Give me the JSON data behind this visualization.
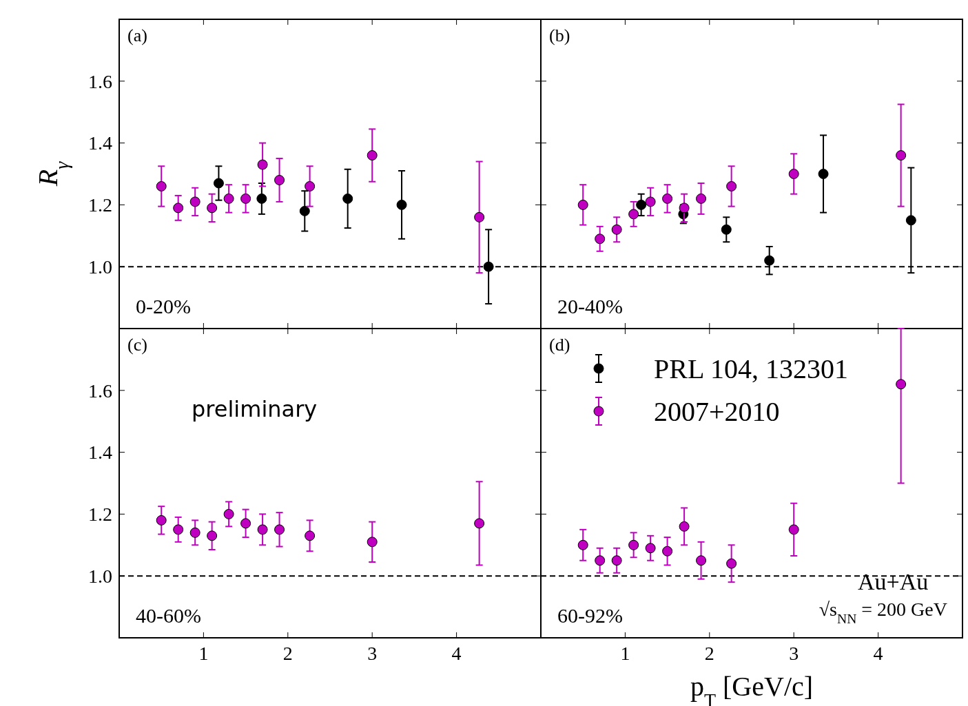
{
  "chart_data": [
    {
      "type": "scatter",
      "title": "(a)",
      "ylabel": "R$_{γ}$",
      "xlim": [
        0,
        5
      ],
      "ylim": [
        0.8,
        1.8
      ],
      "xticks": [
        1,
        2,
        3,
        4
      ],
      "yticks": [
        {
          "value": 1,
          "label": "1.0"
        },
        {
          "value": 1.2,
          "label": "1.2"
        },
        {
          "value": 1.4,
          "label": "1.4"
        },
        {
          "value": 1.6,
          "label": "1.6"
        }
      ],
      "tick_labels": "y",
      "marker": "circle",
      "annotations": [
        "0-20%"
      ],
      "ref_lines": [
        {
          "axis": "y",
          "value": 1,
          "line_style": "dashed",
          "color": "#000000"
        }
      ],
      "series": [
        {
          "color": "#000000",
          "x": [
            1.18,
            1.69,
            2.2,
            2.71,
            3.35,
            4.38
          ],
          "values": [
            1.27,
            1.22,
            1.18,
            1.22,
            1.2,
            1.0
          ],
          "errors": [
            0.055,
            0.05,
            0.065,
            0.095,
            0.11,
            0.12
          ]
        },
        {
          "color": "#c000c0",
          "x": [
            0.5,
            0.7,
            0.9,
            1.1,
            1.3,
            1.5,
            1.7,
            1.9,
            2.26,
            3.0,
            4.27
          ],
          "values": [
            1.26,
            1.19,
            1.21,
            1.19,
            1.22,
            1.22,
            1.33,
            1.28,
            1.26,
            1.36,
            1.16
          ],
          "errors": [
            0.065,
            0.04,
            0.045,
            0.045,
            0.045,
            0.045,
            0.07,
            0.07,
            0.065,
            0.085,
            0.18
          ]
        }
      ]
    },
    {
      "type": "scatter",
      "title": "(b)",
      "xlim": [
        0,
        5
      ],
      "ylim": [
        0.8,
        1.8
      ],
      "xticks": [
        1,
        2,
        3,
        4
      ],
      "yticks": [
        1,
        1.2,
        1.4,
        1.6
      ],
      "tick_labels": false,
      "marker": "circle",
      "annotations": [
        "20-40%"
      ],
      "ref_lines": [
        {
          "axis": "y",
          "value": 1,
          "line_style": "dashed",
          "color": "#000000"
        }
      ],
      "series": [
        {
          "color": "#000000",
          "x": [
            1.19,
            1.69,
            2.2,
            2.71,
            3.35,
            4.39
          ],
          "values": [
            1.2,
            1.17,
            1.12,
            1.02,
            1.3,
            1.15
          ],
          "errors": [
            0.035,
            0.03,
            0.04,
            0.045,
            0.125,
            0.17
          ]
        },
        {
          "color": "#c000c0",
          "x": [
            0.5,
            0.7,
            0.9,
            1.1,
            1.3,
            1.5,
            1.7,
            1.9,
            2.26,
            3.0,
            4.27
          ],
          "values": [
            1.2,
            1.09,
            1.12,
            1.17,
            1.21,
            1.22,
            1.19,
            1.22,
            1.26,
            1.3,
            1.36
          ],
          "errors": [
            0.065,
            0.04,
            0.04,
            0.04,
            0.045,
            0.045,
            0.045,
            0.05,
            0.065,
            0.065,
            0.165
          ]
        }
      ]
    },
    {
      "type": "scatter",
      "title": "(c)",
      "xlim": [
        0,
        5
      ],
      "ylim": [
        0.8,
        1.8
      ],
      "xticks": [
        1,
        2,
        3,
        4
      ],
      "yticks": [
        {
          "value": 1,
          "label": "1.0"
        },
        {
          "value": 1.2,
          "label": "1.2"
        },
        {
          "value": 1.4,
          "label": "1.4"
        },
        {
          "value": 1.6,
          "label": "1.6"
        }
      ],
      "marker": "circle",
      "annotations": [
        "40-60%",
        "preliminary"
      ],
      "ref_lines": [
        {
          "axis": "y",
          "value": 1,
          "line_style": "dashed",
          "color": "#000000"
        }
      ],
      "series": [
        {
          "color": "#c000c0",
          "x": [
            0.5,
            0.7,
            0.9,
            1.1,
            1.3,
            1.5,
            1.7,
            1.9,
            2.26,
            3.0,
            4.27
          ],
          "values": [
            1.18,
            1.15,
            1.14,
            1.13,
            1.2,
            1.17,
            1.15,
            1.15,
            1.13,
            1.11,
            1.17
          ],
          "errors": [
            0.045,
            0.04,
            0.04,
            0.045,
            0.04,
            0.045,
            0.05,
            0.055,
            0.05,
            0.065,
            0.135
          ]
        }
      ]
    },
    {
      "type": "scatter",
      "title": "(d)",
      "xlabel": "p$_{T}$ [GeV/c]",
      "xlim": [
        0,
        5
      ],
      "ylim": [
        0.8,
        1.8
      ],
      "xticks": [
        1,
        2,
        3,
        4
      ],
      "yticks": [
        1,
        1.2,
        1.4,
        1.6
      ],
      "tick_labels": "x",
      "marker": "circle",
      "legend": "top left",
      "annotations": [
        "60-92%",
        "Au+Au",
        "√s$_{NN}$ = 200 GeV"
      ],
      "ref_lines": [
        {
          "axis": "y",
          "value": 1,
          "line_style": "dashed",
          "color": "#000000"
        }
      ],
      "series": [
        {
          "name": "PRL 104, 132301",
          "color": "#000000"
        },
        {
          "name": "2007+2010",
          "color": "#c000c0",
          "x": [
            0.5,
            0.7,
            0.9,
            1.1,
            1.3,
            1.5,
            1.7,
            1.9,
            2.26,
            3.0,
            4.27
          ],
          "values": [
            1.1,
            1.05,
            1.05,
            1.1,
            1.09,
            1.08,
            1.16,
            1.05,
            1.04,
            1.15,
            1.62
          ],
          "errors": [
            0.05,
            0.04,
            0.04,
            0.04,
            0.04,
            0.045,
            0.06,
            0.06,
            0.06,
            0.085,
            [
              1.3,
              1.8
            ]
          ]
        }
      ]
    }
  ]
}
